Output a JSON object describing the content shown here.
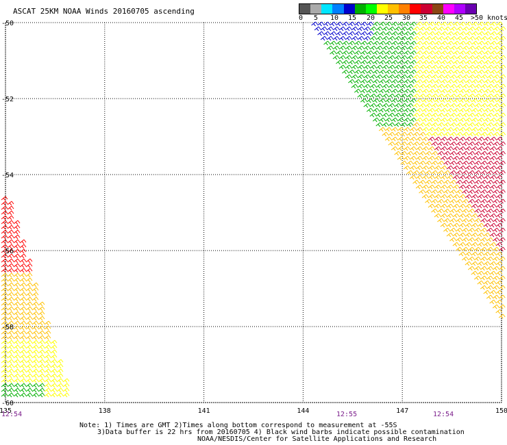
{
  "title": "ASCAT 25KM NOAA Winds 20160705 ascending",
  "legend": {
    "colors": [
      "#555555",
      "#aaaaaa",
      "#00e5ff",
      "#0080ff",
      "#0000cc",
      "#00b000",
      "#00ff00",
      "#ffff00",
      "#ffc000",
      "#ff8000",
      "#ff0000",
      "#cc0033",
      "#8b4513",
      "#ff00ff",
      "#b000ff",
      "#6a00b0"
    ],
    "labels": [
      "0",
      "5",
      "10",
      "15",
      "20",
      "25",
      "30",
      "35",
      "40",
      "45",
      ">50 knots"
    ]
  },
  "map": {
    "lon_range": [
      135,
      150
    ],
    "lat_range": [
      -60,
      -50
    ],
    "lon_ticks": [
      "135",
      "138",
      "141",
      "144",
      "147",
      "150"
    ],
    "lat_ticks": [
      "-50",
      "-52",
      "-54",
      "-56",
      "-58",
      "-60"
    ],
    "grid": "dotted"
  },
  "times": [
    "12:54",
    "12:55",
    "12:54"
  ],
  "notes": {
    "line1": "Note: 1) Times are GMT 2)Times along bottom correspond to measurement at -55S",
    "line2": "3)Data buffer is 22 hrs from 20160705 4) Black wind barbs indicate possible contamination",
    "line3": "NOAA/NESDIS/Center for Satellite Applications and Research"
  }
}
